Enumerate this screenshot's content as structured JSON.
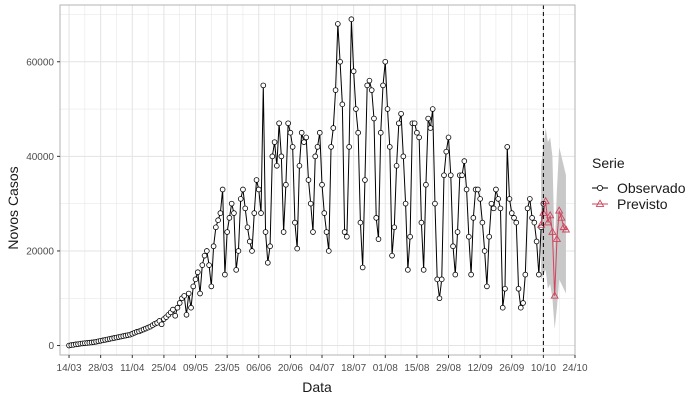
{
  "chart_data": {
    "type": "line",
    "xlabel": "Data",
    "ylabel": "Novos Casos",
    "ylim": [
      -2000,
      72000
    ],
    "yticks": [
      0,
      20000,
      40000,
      60000
    ],
    "ytick_labels": [
      "0",
      "20000",
      "40000",
      "60000"
    ],
    "xtick_labels": [
      "14/03",
      "28/03",
      "11/04",
      "25/04",
      "09/05",
      "23/05",
      "06/06",
      "20/06",
      "04/07",
      "18/07",
      "01/08",
      "15/08",
      "29/08",
      "12/09",
      "26/09",
      "10/10",
      "24/10"
    ],
    "forecast_start_label": "10/10",
    "grid": true,
    "legend": {
      "title": "Serie",
      "position": "right",
      "entries": [
        "Observado",
        "Previsto"
      ]
    },
    "colors": {
      "observed": "#000000",
      "forecast": "#d0455e",
      "band": "#c8c8c8",
      "grid": "#e3e3e3",
      "panel_border": "#b3b3b3"
    },
    "series": [
      {
        "name": "Observado",
        "start_date": "14/03",
        "values": [
          0,
          100,
          150,
          250,
          300,
          400,
          450,
          500,
          550,
          600,
          650,
          700,
          800,
          900,
          1000,
          1100,
          1200,
          1300,
          1400,
          1500,
          1600,
          1700,
          1800,
          1900,
          2000,
          2100,
          2200,
          2300,
          2500,
          2700,
          2900,
          3000,
          3200,
          3400,
          3600,
          3800,
          4000,
          4300,
          4600,
          4800,
          5200,
          4500,
          5600,
          6000,
          6500,
          7000,
          7600,
          6300,
          8000,
          9000,
          10000,
          10500,
          6500,
          11000,
          8000,
          12500,
          14000,
          15500,
          11000,
          17000,
          19000,
          20000,
          17000,
          12500,
          21000,
          25000,
          26500,
          28000,
          33000,
          15000,
          24000,
          27000,
          30000,
          28000,
          16000,
          20000,
          31000,
          33000,
          29000,
          25000,
          22000,
          20000,
          28000,
          35000,
          33000,
          28000,
          55000,
          24000,
          17500,
          21000,
          40000,
          43000,
          38000,
          47000,
          40000,
          24000,
          34000,
          47000,
          45000,
          42000,
          26000,
          20500,
          38000,
          45000,
          43000,
          44000,
          35000,
          30000,
          24000,
          40000,
          42000,
          45000,
          34000,
          28000,
          24000,
          20000,
          42000,
          46000,
          54000,
          68000,
          60000,
          51000,
          24000,
          23000,
          42000,
          69000,
          58000,
          50000,
          45000,
          26000,
          16500,
          35000,
          55000,
          56000,
          54000,
          48000,
          27000,
          22500,
          45000,
          55000,
          60000,
          50000,
          42000,
          19000,
          25000,
          38000,
          47000,
          49000,
          40000,
          30000,
          16000,
          23000,
          47000,
          47000,
          45000,
          44000,
          26000,
          16000,
          34000,
          48000,
          46000,
          50000,
          30000,
          14000,
          10000,
          14000,
          36000,
          41000,
          44000,
          36000,
          21000,
          15000,
          24000,
          36000,
          36000,
          39000,
          33000,
          23000,
          15000,
          27000,
          33000,
          33000,
          31000,
          26000,
          20000,
          12500,
          23000,
          30000,
          29000,
          33000,
          31000,
          29000,
          8000,
          12000,
          42000,
          31000,
          28000,
          27000,
          26000,
          12000,
          8000,
          9000,
          15000,
          29000,
          31000,
          27000,
          26000,
          22000,
          15000,
          25000,
          30000
        ]
      },
      {
        "name": "Previsto",
        "start_date": "09/10",
        "values": [
          25500,
          28000,
          30500,
          26000,
          27500,
          24000,
          10500,
          22500,
          28500,
          27000,
          25000,
          24500
        ],
        "lower": [
          14000,
          15000,
          16000,
          12000,
          13000,
          10000,
          3500,
          8000,
          14000,
          13000,
          12000,
          11000
        ],
        "upper": [
          38000,
          42000,
          46000,
          43000,
          44000,
          40000,
          20000,
          33000,
          42000,
          40000,
          38000,
          36000
        ]
      }
    ]
  }
}
